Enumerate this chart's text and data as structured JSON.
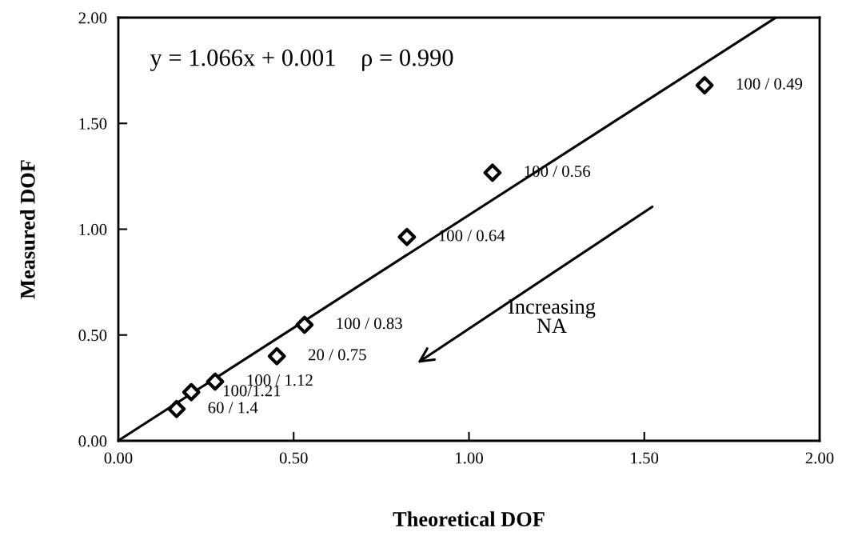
{
  "chart_data": {
    "type": "scatter",
    "xlabel": "Theoretical DOF",
    "ylabel": "Measured DOF",
    "xlim": [
      0,
      2
    ],
    "ylim": [
      0,
      2
    ],
    "xticks": [
      {
        "value": 0,
        "label": "0.00"
      },
      {
        "value": 0.5,
        "label": "0.50"
      },
      {
        "value": 1,
        "label": "1.00"
      },
      {
        "value": 1.5,
        "label": "1.50"
      },
      {
        "value": 2,
        "label": "2.00"
      }
    ],
    "yticks": [
      {
        "value": 0,
        "label": "0.00"
      },
      {
        "value": 0.5,
        "label": "0.50"
      },
      {
        "value": 1,
        "label": "1.00"
      },
      {
        "value": 1.5,
        "label": "1.50"
      },
      {
        "value": 2,
        "label": "2.00"
      }
    ],
    "grid": false,
    "legend": false,
    "marker": "diamond",
    "series": [
      {
        "color": "#000000",
        "x": [
          1.672,
          1.067,
          0.823,
          0.531,
          0.452,
          0.276,
          0.208,
          0.166
        ],
        "values": [
          1.68,
          1.267,
          0.963,
          0.548,
          0.4,
          0.28,
          0.23,
          0.15
        ]
      },
      {
        "type": "line",
        "marker": "none",
        "color": "#000000",
        "x": [
          0,
          1.875
        ],
        "values": [
          0.001,
          2.0
        ]
      }
    ],
    "annotations": [
      "y = 1.066x + 0.001    ρ = 0.990",
      "Increasing\nNA",
      {
        "text": "100 / 0.49",
        "x": 1.672,
        "y": 1.68
      },
      {
        "text": "100 / 0.56",
        "x": 1.067,
        "y": 1.267
      },
      {
        "text": "100 / 0.64",
        "x": 0.823,
        "y": 0.963
      },
      {
        "text": "100 / 0.83",
        "x": 0.531,
        "y": 0.548
      },
      {
        "text": "20 / 0.75",
        "x": 0.452,
        "y": 0.4
      },
      {
        "text": "100 / 1.12",
        "x": 0.276,
        "y": 0.28
      },
      {
        "text": "100/1.21",
        "x": 0.208,
        "y": 0.23
      },
      {
        "text": "60 / 1.4",
        "x": 0.166,
        "y": 0.15
      }
    ]
  }
}
